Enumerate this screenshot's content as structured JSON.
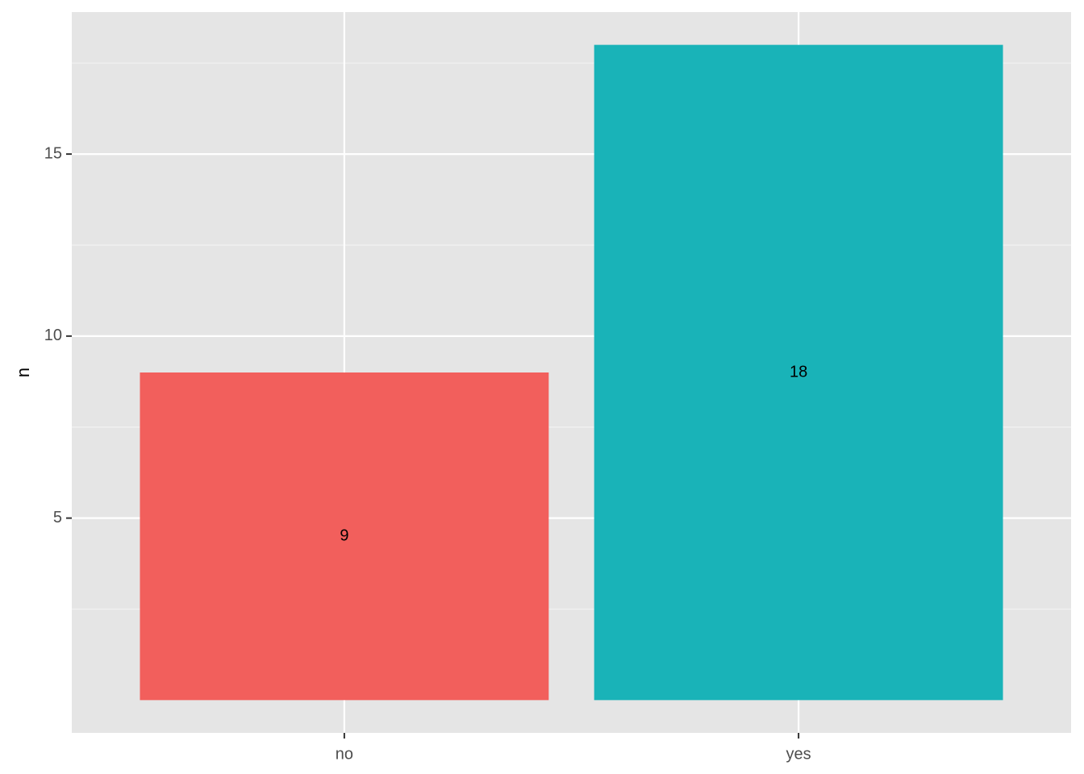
{
  "chart_data": {
    "type": "bar",
    "y_label": "n",
    "categories": [
      "no",
      "yes"
    ],
    "values": [
      9,
      18
    ],
    "colors": [
      "#F25F5C",
      "#19B3B8"
    ],
    "ylim": [
      -0.9,
      18.9
    ],
    "yticks": [
      5,
      10,
      15
    ],
    "y_minor_grid": [
      2.5,
      7.5,
      12.5,
      17.5
    ],
    "grid": true
  }
}
